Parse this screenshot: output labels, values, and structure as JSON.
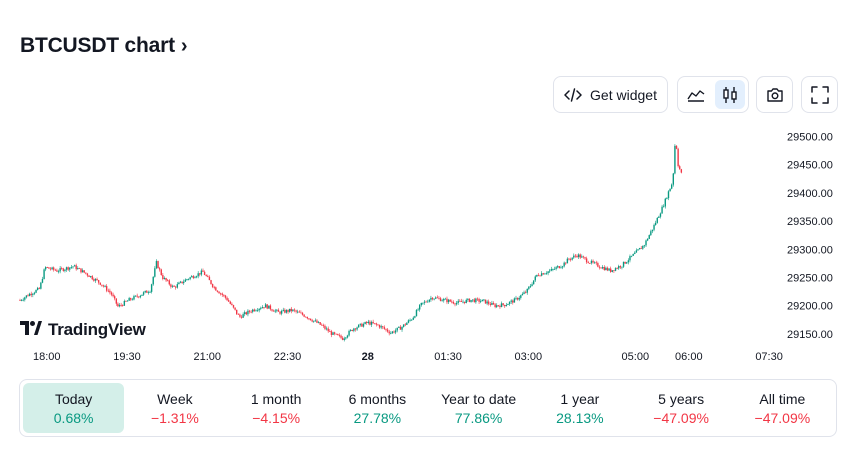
{
  "header": {
    "title": "BTCUSDT chart",
    "chevron": "›"
  },
  "toolbar": {
    "widget_label": "Get widget",
    "widget_icon": "code-icon",
    "line_icon": "area-chart-icon",
    "candle_icon": "candlestick-icon",
    "camera_icon": "camera-icon",
    "fullscreen_icon": "fullscreen-icon",
    "active_type": "candles"
  },
  "branding": {
    "name": "TradingView",
    "icon": "tradingview-logo-icon"
  },
  "chart_data": {
    "type": "candlestick",
    "up_color": "#089981",
    "down_color": "#f23645",
    "x_ticks": [
      {
        "label": "18:00",
        "t": 1080
      },
      {
        "label": "19:30",
        "t": 1170
      },
      {
        "label": "21:00",
        "t": 1260
      },
      {
        "label": "22:30",
        "t": 1350
      },
      {
        "label": "28",
        "t": 1440,
        "bold": true
      },
      {
        "label": "01:30",
        "t": 1530
      },
      {
        "label": "03:00",
        "t": 1620
      },
      {
        "label": "05:00",
        "t": 1740
      },
      {
        "label": "06:00",
        "t": 1800
      },
      {
        "label": "07:30",
        "t": 1890
      }
    ],
    "x_range": [
      1050,
      1900
    ],
    "y_ticks": [
      "29500.00",
      "29450.00",
      "29400.00",
      "29350.00",
      "29300.00",
      "29250.00",
      "29200.00",
      "29150.00"
    ],
    "y_range": [
      29125,
      29515
    ],
    "close_path": [
      [
        1050,
        29210
      ],
      [
        1060,
        29220
      ],
      [
        1072,
        29230
      ],
      [
        1078,
        29268
      ],
      [
        1092,
        29262
      ],
      [
        1110,
        29270
      ],
      [
        1126,
        29255
      ],
      [
        1140,
        29240
      ],
      [
        1152,
        29222
      ],
      [
        1160,
        29198
      ],
      [
        1172,
        29210
      ],
      [
        1186,
        29220
      ],
      [
        1196,
        29228
      ],
      [
        1203,
        29276
      ],
      [
        1210,
        29250
      ],
      [
        1222,
        29232
      ],
      [
        1238,
        29248
      ],
      [
        1255,
        29260
      ],
      [
        1268,
        29232
      ],
      [
        1282,
        29212
      ],
      [
        1296,
        29180
      ],
      [
        1310,
        29192
      ],
      [
        1325,
        29200
      ],
      [
        1340,
        29188
      ],
      [
        1355,
        29192
      ],
      [
        1370,
        29182
      ],
      [
        1388,
        29165
      ],
      [
        1400,
        29150
      ],
      [
        1412,
        29142
      ],
      [
        1424,
        29160
      ],
      [
        1440,
        29170
      ],
      [
        1452,
        29165
      ],
      [
        1466,
        29152
      ],
      [
        1478,
        29162
      ],
      [
        1490,
        29178
      ],
      [
        1500,
        29202
      ],
      [
        1512,
        29215
      ],
      [
        1526,
        29210
      ],
      [
        1540,
        29205
      ],
      [
        1555,
        29210
      ],
      [
        1570,
        29208
      ],
      [
        1582,
        29200
      ],
      [
        1594,
        29202
      ],
      [
        1605,
        29210
      ],
      [
        1618,
        29225
      ],
      [
        1630,
        29255
      ],
      [
        1645,
        29262
      ],
      [
        1658,
        29272
      ],
      [
        1665,
        29282
      ],
      [
        1675,
        29290
      ],
      [
        1688,
        29278
      ],
      [
        1700,
        29270
      ],
      [
        1712,
        29262
      ],
      [
        1725,
        29272
      ],
      [
        1738,
        29290
      ],
      [
        1750,
        29308
      ],
      [
        1762,
        29345
      ],
      [
        1772,
        29380
      ],
      [
        1778,
        29405
      ],
      [
        1782,
        29420
      ],
      [
        1785,
        29500
      ],
      [
        1788,
        29450
      ],
      [
        1792,
        29432
      ]
    ]
  },
  "periods": [
    {
      "label": "Today",
      "value": "0.68%",
      "trend": "pos",
      "active": true
    },
    {
      "label": "Week",
      "value": "−1.31%",
      "trend": "neg"
    },
    {
      "label": "1 month",
      "value": "−4.15%",
      "trend": "neg"
    },
    {
      "label": "6 months",
      "value": "27.78%",
      "trend": "pos"
    },
    {
      "label": "Year to date",
      "value": "77.86%",
      "trend": "pos"
    },
    {
      "label": "1 year",
      "value": "28.13%",
      "trend": "pos"
    },
    {
      "label": "5 years",
      "value": "−47.09%",
      "trend": "neg"
    },
    {
      "label": "All time",
      "value": "−47.09%",
      "trend": "neg"
    }
  ]
}
